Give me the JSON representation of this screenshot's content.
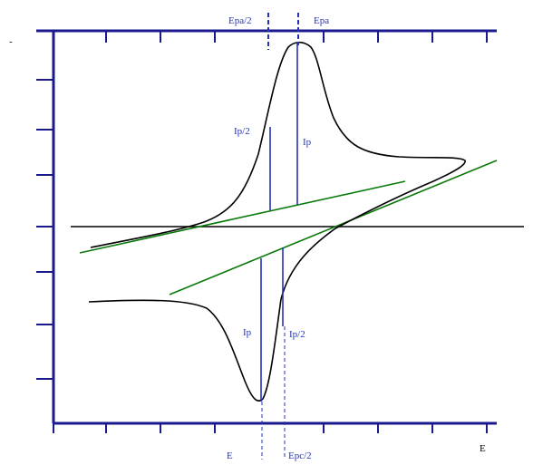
{
  "labels": {
    "epa_half": "Epa/2",
    "epa": "Epa",
    "ipa_half": "Ip/2",
    "ipa": "Ip",
    "ipc": "Ip",
    "ipc_half": "Ip/2",
    "epc": "E",
    "epc_half": "Epc/2",
    "x_axis": "E",
    "y_axis": "-"
  },
  "colors": {
    "axis": "#1a1a8c",
    "curve": "#000000",
    "baseline": "#0a7a0a",
    "marker": "#2233bb"
  }
}
